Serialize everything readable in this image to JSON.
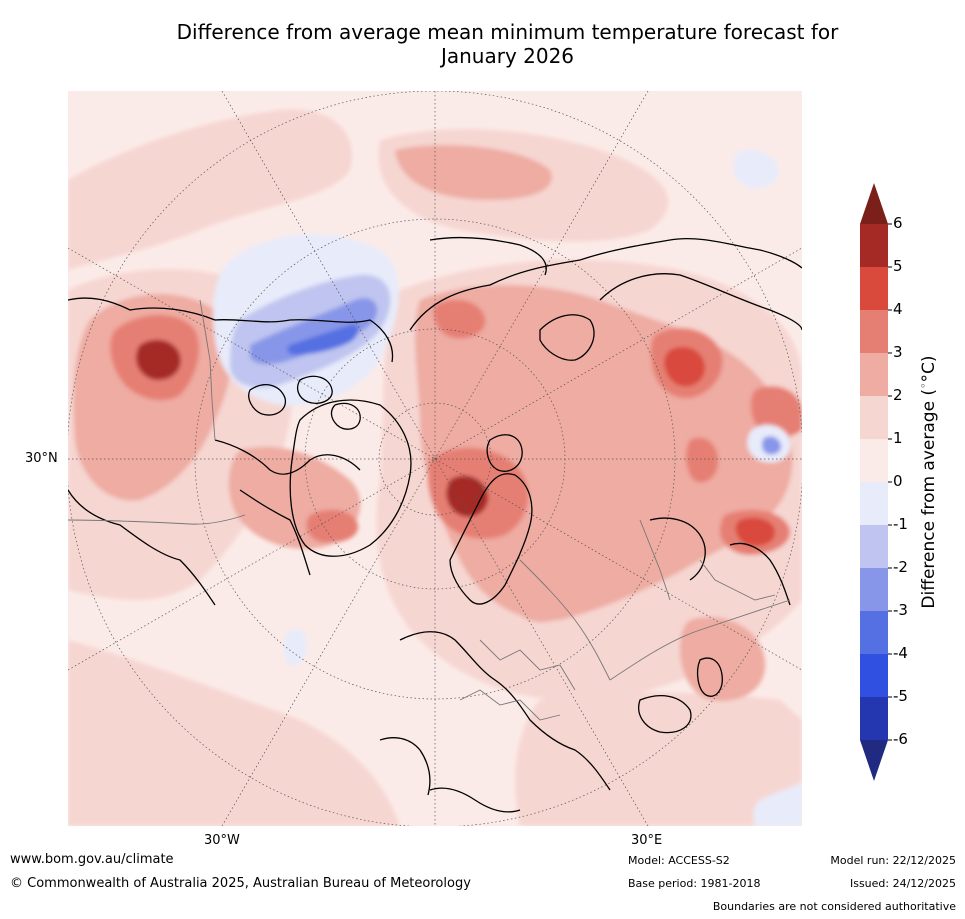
{
  "title": {
    "line1": "Difference from average mean minimum temperature forecast for",
    "line2": "January 2026"
  },
  "map": {
    "projection": "north polar stereographic",
    "region": "Northern Hemisphere (North America, Greenland, Arctic, Europe, Asia)",
    "latitude_labels": [
      "30°N"
    ],
    "longitude_labels": [
      "30°W",
      "30°E"
    ],
    "grid": "dotted"
  },
  "colorbar": {
    "title": "Difference from average (°C)",
    "title_prefix": "Difference from average (",
    "title_unit": "°C",
    "title_suffix": ")",
    "ticks": [
      "6",
      "5",
      "4",
      "3",
      "2",
      "1",
      "0",
      "-1",
      "-2",
      "-3",
      "-4",
      "-5",
      "-6"
    ],
    "colors": [
      "#a52a25",
      "#d94a3d",
      "#e67f73",
      "#eeaca2",
      "#f6d6d1",
      "#fbebe8",
      "#e8ebfa",
      "#bfc5f0",
      "#8796e8",
      "#5570e2",
      "#2f50e0",
      "#2437b0"
    ],
    "overflow_color": "#7a1f1a",
    "underflow_color": "#1f2a80"
  },
  "footer": {
    "website": "www.bom.gov.au/climate",
    "copyright": "© Commonwealth of Australia 2025, Australian Bureau of Meteorology",
    "model": "Model: ACCESS-S2",
    "base_period": "Base period: 1981-2018",
    "model_run": "Model run: 22/12/2025",
    "issued": "Issued: 24/12/2025",
    "disclaimer": "Boundaries are not considered authoritative"
  }
}
